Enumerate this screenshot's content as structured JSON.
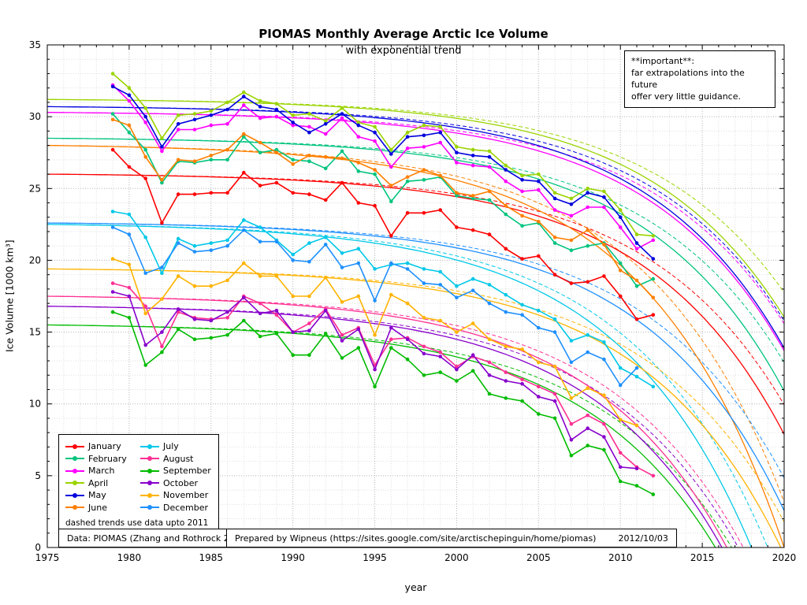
{
  "annotation": {
    "line1": "**important**:",
    "line2": "far extrapolations into the future",
    "line3": "offer very little guidance."
  },
  "legend": {
    "note": "dashed trends use data upto 2011"
  },
  "footer": {
    "data_source": "Data: PIOMAS (Zhang and Rothrock 2003)",
    "prepared_by": "Prepared by Wipneus (https://sites.google.com/site/arctischepinguin/home/piomas)",
    "date": "2012/10/03"
  },
  "chart_data": {
    "type": "line",
    "title": "PIOMAS Monthly Average Arctic Ice Volume",
    "subtitle": "with exponential trend",
    "xlabel": "year",
    "ylabel": "Ice Volume [1000 km³]",
    "xlim": [
      1975,
      2020
    ],
    "ylim": [
      0,
      35
    ],
    "x_ticks": [
      1975,
      1980,
      1985,
      1990,
      1995,
      2000,
      2005,
      2010,
      2015,
      2020
    ],
    "y_ticks": [
      0,
      5,
      10,
      15,
      20,
      25,
      30,
      35
    ],
    "grid": "fine dotted grid every 1 unit, darker dotted every 5",
    "legend_position": "bottom-left",
    "trend_note": "solid trend fit uses all data; dashed trend fit uses data up to 2011; trend model y = L - A*exp(k*(t-1975)) with A = start/(exp(k*(zero_year-1975))-1), L = start + A",
    "years": [
      1979,
      1980,
      1981,
      1982,
      1983,
      1984,
      1985,
      1986,
      1987,
      1988,
      1989,
      1990,
      1991,
      1992,
      1993,
      1994,
      1995,
      1996,
      1997,
      1998,
      1999,
      2000,
      2001,
      2002,
      2003,
      2004,
      2005,
      2006,
      2007,
      2008,
      2009,
      2010,
      2011,
      2012
    ],
    "series": [
      {
        "name": "January",
        "color": "#ff0000",
        "values": [
          27.7,
          26.5,
          25.7,
          22.6,
          24.6,
          24.6,
          24.7,
          24.7,
          26.1,
          25.2,
          25.4,
          24.7,
          24.6,
          24.2,
          25.4,
          24.0,
          23.8,
          21.7,
          23.3,
          23.3,
          23.5,
          22.3,
          22.1,
          21.8,
          20.8,
          20.1,
          20.3,
          19.0,
          18.4,
          18.5,
          18.9,
          17.5,
          15.9,
          16.2
        ],
        "trend": {
          "start": 26.0,
          "zero_year": 2023,
          "k": 0.12
        }
      },
      {
        "name": "February",
        "color": "#00c47e",
        "values": [
          30.2,
          28.9,
          27.7,
          25.4,
          26.9,
          26.8,
          27.0,
          27.0,
          28.6,
          27.5,
          27.7,
          27.0,
          26.9,
          26.4,
          27.6,
          26.2,
          26.0,
          24.1,
          25.5,
          25.6,
          25.8,
          24.5,
          24.3,
          24.2,
          23.2,
          22.4,
          22.6,
          21.2,
          20.7,
          21.0,
          21.2,
          19.8,
          18.2,
          18.7
        ],
        "trend": {
          "start": 28.5,
          "zero_year": 2024,
          "k": 0.12
        }
      },
      {
        "name": "March",
        "color": "#ff00ff",
        "values": [
          32.2,
          31.1,
          29.6,
          27.6,
          29.1,
          29.1,
          29.4,
          29.5,
          30.8,
          29.9,
          30.0,
          29.4,
          29.3,
          28.8,
          29.9,
          28.6,
          28.3,
          26.5,
          27.8,
          27.9,
          28.2,
          26.8,
          26.6,
          26.5,
          25.5,
          24.8,
          24.9,
          23.5,
          23.1,
          23.7,
          23.7,
          22.3,
          20.8,
          21.4
        ],
        "trend": {
          "start": 30.3,
          "zero_year": 2025,
          "k": 0.12
        }
      },
      {
        "name": "April",
        "color": "#9ad400",
        "values": [
          33.0,
          32.0,
          30.6,
          28.5,
          30.1,
          30.2,
          30.4,
          31.0,
          31.7,
          31.1,
          30.9,
          30.1,
          30.2,
          29.7,
          30.6,
          29.6,
          29.3,
          27.7,
          28.9,
          29.4,
          29.3,
          27.9,
          27.7,
          27.6,
          26.6,
          25.9,
          26.0,
          24.7,
          24.3,
          25.0,
          24.8,
          23.5,
          21.8,
          21.7
        ],
        "trend": {
          "start": 31.2,
          "zero_year": 2026,
          "k": 0.12
        }
      },
      {
        "name": "May",
        "color": "#0000dd",
        "values": [
          32.1,
          31.5,
          30.0,
          27.9,
          29.5,
          29.8,
          30.1,
          30.5,
          31.4,
          30.7,
          30.5,
          29.6,
          28.9,
          29.5,
          30.2,
          29.4,
          28.9,
          27.4,
          28.6,
          28.7,
          28.9,
          27.5,
          27.3,
          27.2,
          26.3,
          25.6,
          25.5,
          24.3,
          23.9,
          24.7,
          24.4,
          23.0,
          21.2,
          20.1
        ],
        "trend": {
          "start": 30.7,
          "zero_year": 2025,
          "k": 0.12
        }
      },
      {
        "name": "June",
        "color": "#ff7f00",
        "values": [
          29.8,
          29.4,
          27.2,
          25.6,
          27.0,
          26.9,
          27.3,
          27.7,
          28.8,
          28.2,
          27.5,
          26.7,
          27.3,
          27.2,
          27.1,
          26.8,
          26.3,
          25.2,
          25.8,
          26.3,
          25.9,
          24.7,
          24.5,
          24.8,
          23.8,
          23.1,
          22.7,
          21.6,
          21.4,
          22.1,
          21.1,
          19.3,
          18.6,
          17.4
        ],
        "trend": {
          "start": 28.0,
          "zero_year": 2020,
          "k": 0.12
        }
      },
      {
        "name": "July",
        "color": "#00c8e8",
        "values": [
          23.4,
          23.2,
          21.6,
          19.1,
          21.5,
          21.0,
          21.2,
          21.4,
          22.8,
          22.3,
          21.4,
          20.4,
          21.2,
          21.6,
          20.5,
          20.8,
          19.4,
          19.7,
          19.8,
          19.4,
          19.2,
          18.2,
          18.7,
          18.3,
          17.6,
          16.9,
          16.5,
          15.9,
          14.4,
          14.8,
          14.3,
          12.5,
          11.9,
          11.2
        ],
        "trend": {
          "start": 22.5,
          "zero_year": 2018,
          "k": 0.12
        }
      },
      {
        "name": "August",
        "color": "#ff2f92",
        "values": [
          18.4,
          18.1,
          16.8,
          14.0,
          16.4,
          16.0,
          15.9,
          16.0,
          17.5,
          17.0,
          16.2,
          15.0,
          15.6,
          16.6,
          14.8,
          15.3,
          12.7,
          14.5,
          14.6,
          14.0,
          13.6,
          12.6,
          13.3,
          12.9,
          12.2,
          11.7,
          11.2,
          10.7,
          8.6,
          9.2,
          8.6,
          6.6,
          5.6,
          5.0
        ],
        "trend": {
          "start": 17.5,
          "zero_year": 2016.5,
          "k": 0.12
        }
      },
      {
        "name": "September",
        "color": "#00bb00",
        "values": [
          16.4,
          16.0,
          12.7,
          13.6,
          15.2,
          14.5,
          14.6,
          14.8,
          15.8,
          14.7,
          14.9,
          13.4,
          13.4,
          14.9,
          13.2,
          13.9,
          11.2,
          13.9,
          13.1,
          12.0,
          12.2,
          11.6,
          12.3,
          10.7,
          10.4,
          10.2,
          9.3,
          9.0,
          6.4,
          7.1,
          6.8,
          4.6,
          4.3,
          3.7
        ],
        "trend": {
          "start": 15.5,
          "zero_year": 2015.8,
          "k": 0.12
        }
      },
      {
        "name": "October",
        "color": "#8800cc",
        "values": [
          17.8,
          17.5,
          14.1,
          15.0,
          16.6,
          15.9,
          15.8,
          16.4,
          17.4,
          16.3,
          16.5,
          15.0,
          15.1,
          16.5,
          14.4,
          15.2,
          12.4,
          15.3,
          14.5,
          13.5,
          13.3,
          12.4,
          13.4,
          12.0,
          11.6,
          11.4,
          10.5,
          10.2,
          7.5,
          8.3,
          7.7,
          5.6,
          5.5,
          null
        ],
        "trend": {
          "start": 16.8,
          "zero_year": 2016.2,
          "k": 0.12
        }
      },
      {
        "name": "November",
        "color": "#ffb300",
        "values": [
          20.1,
          19.7,
          16.3,
          17.3,
          18.9,
          18.2,
          18.2,
          18.6,
          19.8,
          18.9,
          18.9,
          17.5,
          17.5,
          18.8,
          17.1,
          17.5,
          14.8,
          17.6,
          17.0,
          16.0,
          15.8,
          15.0,
          15.6,
          14.5,
          14.0,
          13.8,
          12.9,
          12.6,
          10.4,
          11.1,
          10.6,
          8.9,
          8.5,
          null
        ],
        "trend": {
          "start": 19.4,
          "zero_year": 2019.8,
          "k": 0.12
        }
      },
      {
        "name": "December",
        "color": "#1e90ff",
        "values": [
          22.3,
          21.8,
          19.1,
          19.5,
          21.2,
          20.6,
          20.7,
          21.0,
          22.1,
          21.3,
          21.3,
          20.0,
          19.9,
          21.1,
          19.5,
          19.8,
          17.2,
          19.8,
          19.4,
          18.4,
          18.3,
          17.4,
          17.9,
          17.0,
          16.4,
          16.2,
          15.3,
          15.0,
          12.9,
          13.6,
          13.1,
          11.3,
          12.5,
          null
        ],
        "trend": {
          "start": 22.6,
          "zero_year": 2021,
          "k": 0.12
        }
      }
    ]
  }
}
